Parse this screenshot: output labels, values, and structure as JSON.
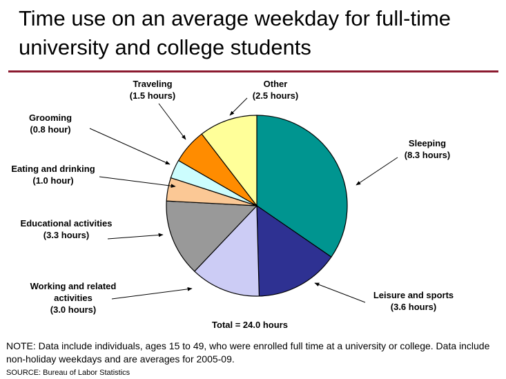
{
  "page": {
    "title_line1": "Time use on an average weekday for full-time",
    "title_line2": "university and college students",
    "note_line1": "NOTE: Data include individuals, ages 15 to 49, who were enrolled full time at a university or college. Data include",
    "note_line2": "non-holiday weekdays and are averages for 2005-09.",
    "source": "SOURCE: Bureau of Labor Statistics",
    "rule_color": "#8b1a2f"
  },
  "chart_data": {
    "type": "pie",
    "title": "Time use on an average weekday for full-time university and college students",
    "total_label": "Total = 24.0 hours",
    "slices": [
      {
        "name": "Sleeping",
        "value": 8.3,
        "value_label": "(8.3 hours)",
        "color": "#009590",
        "label_lines": [
          "Sleeping"
        ]
      },
      {
        "name": "Leisure and sports",
        "value": 3.6,
        "value_label": "(3.6 hours)",
        "color": "#2e3192",
        "label_lines": [
          "Leisure and sports"
        ]
      },
      {
        "name": "Working and related activities",
        "value": 3.0,
        "value_label": "(3.0 hours)",
        "color": "#ccccf5",
        "label_lines": [
          "Working and related",
          "activities"
        ]
      },
      {
        "name": "Educational activities",
        "value": 3.3,
        "value_label": "(3.3 hours)",
        "color": "#999999",
        "label_lines": [
          "Educational activities"
        ]
      },
      {
        "name": "Eating and drinking",
        "value": 1.0,
        "value_label": "(1.0 hour)",
        "color": "#fbc895",
        "label_lines": [
          "Eating and drinking"
        ]
      },
      {
        "name": "Grooming",
        "value": 0.8,
        "value_label": "(0.8 hour)",
        "color": "#ccfdfe",
        "label_lines": [
          "Grooming"
        ]
      },
      {
        "name": "Traveling",
        "value": 1.5,
        "value_label": "(1.5 hours)",
        "color": "#ff8c00",
        "label_lines": [
          "Traveling"
        ]
      },
      {
        "name": "Other",
        "value": 2.5,
        "value_label": "(2.5 hours)",
        "color": "#ffff99",
        "label_lines": [
          "Other"
        ]
      }
    ]
  }
}
